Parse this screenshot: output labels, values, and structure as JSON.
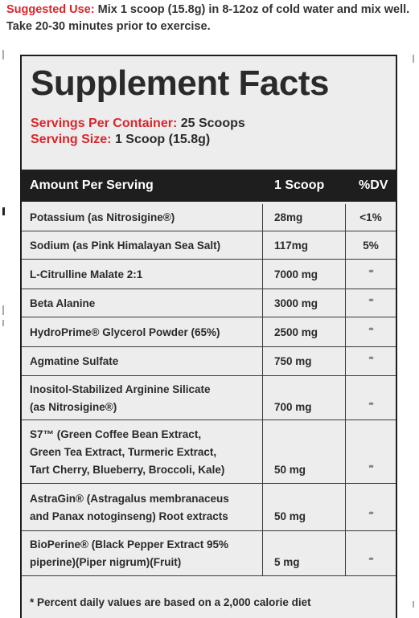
{
  "suggested_use": {
    "label": "Suggested Use:",
    "text": " Mix 1 scoop (15.8g) in 8-12oz of cold water and mix well. Take 20-30 minutes prior to exercise."
  },
  "panel": {
    "title": "Supplement Facts",
    "servings_per_container_label": "Servings Per Container:",
    "servings_per_container_value": "25 Scoops",
    "serving_size_label": "Serving Size:",
    "serving_size_value": "1 Scoop (15.8g)"
  },
  "table": {
    "headers": {
      "amount": "Amount Per Serving",
      "scoop": "1 Scoop",
      "dv": "%DV"
    },
    "rows": [
      {
        "name": [
          "Potassium (as Nitrosigine®)"
        ],
        "amount": "28mg",
        "dv": "<1%"
      },
      {
        "name": [
          "Sodium (as Pink Himalayan Sea Salt)"
        ],
        "amount": "117mg",
        "dv": "5%"
      },
      {
        "name": [
          "L-Citrulline Malate 2:1"
        ],
        "amount": "7000 mg",
        "dv": "**"
      },
      {
        "name": [
          "Beta Alanine"
        ],
        "amount": "3000 mg",
        "dv": "**"
      },
      {
        "name": [
          "HydroPrime® Glycerol Powder (65%)"
        ],
        "amount": "2500 mg",
        "dv": "**"
      },
      {
        "name": [
          "Agmatine Sulfate"
        ],
        "amount": "750 mg",
        "dv": "**"
      },
      {
        "name": [
          "Inositol-Stabilized Arginine Silicate",
          "(as Nitrosigine®)"
        ],
        "amount": "700 mg",
        "dv": "**"
      },
      {
        "name": [
          "S7™ (Green Coffee Bean Extract,",
          "Green Tea Extract, Turmeric Extract,",
          "Tart Cherry, Blueberry, Broccoli, Kale)"
        ],
        "amount": "50 mg",
        "dv": "**"
      },
      {
        "name": [
          "AstraGin® (Astragalus membranaceus",
          "and Panax notoginseng) Root extracts"
        ],
        "amount": "50 mg",
        "dv": "**"
      },
      {
        "name": [
          "BioPerine® (Black Pepper Extract 95%",
          "piperine)(Piper nigrum)(Fruit)"
        ],
        "amount": "5 mg",
        "dv": "**"
      }
    ],
    "footnote": "* Percent daily values are based on a 2,000 calorie diet"
  },
  "colors": {
    "accent_red": "#d8262d",
    "header_bg": "#1e1e1e",
    "panel_bg": "#ededed"
  }
}
